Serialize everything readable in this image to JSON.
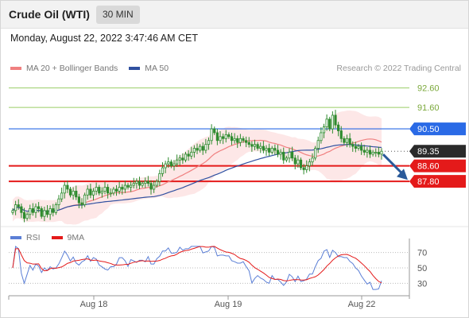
{
  "header": {
    "title": "Crude Oil (WTI)",
    "timeframe": "30 MIN",
    "datetime": "Monday, August 22, 2022 3:47:46 AM CET"
  },
  "legend": {
    "ma20": "MA 20 + Bollinger Bands",
    "ma50": "MA 50",
    "credit": "Research © 2022 Trading Central",
    "rsi": "RSI",
    "rsi_ma": "9MA"
  },
  "colors": {
    "candle": "#2e8b2e",
    "ma20": "#f08080",
    "ma50": "#3050a0",
    "band_fill": "#fde4e4",
    "support": "#e41a1a",
    "resistance": "#2a6ae6",
    "target_line": "#9acd66",
    "arrow": "#2a5a9a",
    "last_price_bg": "#2a2a2a",
    "rsi": "#5b7fd6",
    "rsi_ma": "#e41a1a"
  },
  "chart_data": [
    {
      "type": "candlestick",
      "title": "Crude Oil (WTI)",
      "timeframe": "30 MIN",
      "x_ticks": [
        "Aug 18",
        "Aug 19",
        "Aug 22"
      ],
      "ylim": [
        85.6,
        93.2
      ],
      "grid": false,
      "legend_position": "top-left",
      "closes": [
        86.3,
        86.6,
        86.5,
        86.2,
        85.9,
        86.1,
        86.4,
        86.2,
        86.5,
        86.4,
        86.0,
        86.3,
        86.1,
        86.4,
        86.2,
        86.6,
        86.9,
        87.2,
        87.6,
        87.4,
        87.1,
        87.3,
        87.0,
        86.7,
        86.6,
        87.1,
        87.4,
        87.1,
        87.3,
        87.5,
        87.2,
        87.3,
        87.5,
        87.2,
        87.2,
        87.4,
        87.3,
        87.5,
        87.4,
        87.6,
        87.5,
        87.6,
        87.7,
        87.8,
        87.6,
        87.7,
        87.8,
        87.7,
        87.4,
        87.6,
        87.8,
        88.2,
        88.5,
        88.7,
        88.8,
        88.6,
        88.7,
        88.9,
        89.0,
        88.9,
        89.2,
        89.1,
        89.3,
        89.5,
        89.4,
        89.6,
        89.4,
        89.7,
        89.9,
        90.5,
        90.3,
        89.9,
        90.1,
        90.0,
        90.2,
        90.1,
        89.9,
        90.0,
        89.8,
        90.0,
        89.9,
        89.8,
        89.7,
        89.6,
        89.7,
        89.5,
        89.6,
        89.4,
        89.5,
        89.3,
        89.5,
        89.4,
        89.2,
        89.3,
        88.9,
        89.0,
        89.3,
        89.0,
        88.7,
        88.9,
        88.5,
        88.4,
        88.6,
        88.8,
        89.0,
        89.5,
        89.9,
        90.3,
        90.6,
        91.0,
        90.5,
        91.2,
        90.7,
        90.4,
        90.0,
        89.8,
        90.0,
        89.7,
        89.6,
        89.5,
        89.6,
        89.4,
        89.3,
        89.4,
        89.2,
        89.3,
        89.3,
        89.2,
        89.35
      ]
    },
    {
      "type": "line",
      "title": "RSI",
      "series": [
        {
          "name": "RSI"
        },
        {
          "name": "9MA"
        }
      ],
      "x_ticks": [
        "Aug 18",
        "Aug 19",
        "Aug 22"
      ],
      "ylim": [
        20,
        80
      ],
      "y_ticks": [
        70,
        50,
        30
      ]
    }
  ],
  "levels": [
    {
      "value": 92.6,
      "label": "92.60",
      "kind": "target"
    },
    {
      "value": 91.6,
      "label": "91.60",
      "kind": "target"
    },
    {
      "value": 90.5,
      "label": "90.50",
      "kind": "resistance"
    },
    {
      "value": 89.35,
      "label": "89.35",
      "kind": "last"
    },
    {
      "value": 88.6,
      "label": "88.60",
      "kind": "support"
    },
    {
      "value": 87.8,
      "label": "87.80",
      "kind": "support"
    }
  ]
}
